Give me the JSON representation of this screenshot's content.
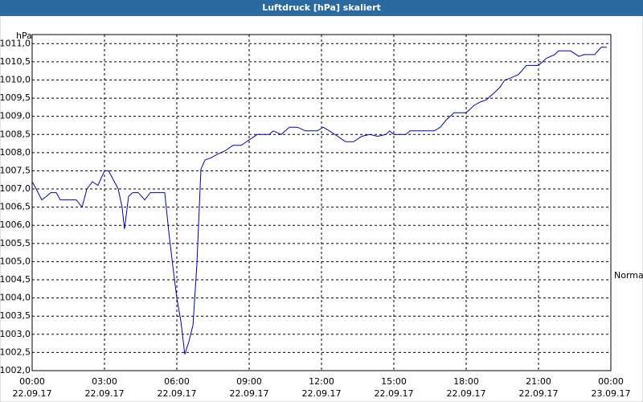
{
  "chart_data": {
    "type": "line",
    "title": "Luftdruck [hPa] skaliert",
    "y_label": "hPa",
    "annotations": [
      "Normal"
    ],
    "grid": true,
    "color": "#0000c0",
    "xlim": [
      0,
      24
    ],
    "ylim": [
      1002,
      1011.25
    ],
    "xticks": [
      {
        "value": 0,
        "label": [
          "00:00",
          "22.09.17"
        ]
      },
      {
        "value": 3,
        "label": [
          "03:00",
          "22.09.17"
        ]
      },
      {
        "value": 6,
        "label": [
          "06:00",
          "22.09.17"
        ]
      },
      {
        "value": 9,
        "label": [
          "09:00",
          "22.09.17"
        ]
      },
      {
        "value": 12,
        "label": [
          "12:00",
          "22.09.17"
        ]
      },
      {
        "value": 15,
        "label": [
          "15:00",
          "22.09.17"
        ]
      },
      {
        "value": 18,
        "label": [
          "18:00",
          "22.09.17"
        ]
      },
      {
        "value": 21,
        "label": [
          "21:00",
          "22.09.17"
        ]
      },
      {
        "value": 24,
        "label": [
          "00:00",
          "23.09.17"
        ]
      }
    ],
    "yticks": [
      {
        "value": 1002,
        "label": "1002,0"
      },
      {
        "value": 1002.5,
        "label": "1002,5"
      },
      {
        "value": 1003,
        "label": "1003,0"
      },
      {
        "value": 1003.5,
        "label": "1003,5"
      },
      {
        "value": 1004,
        "label": "1004,0"
      },
      {
        "value": 1004.5,
        "label": "1004,5"
      },
      {
        "value": 1005,
        "label": "1005,0"
      },
      {
        "value": 1005.5,
        "label": "1005,5"
      },
      {
        "value": 1006,
        "label": "1006,0"
      },
      {
        "value": 1006.5,
        "label": "1006,5"
      },
      {
        "value": 1007,
        "label": "1007,0"
      },
      {
        "value": 1007.5,
        "label": "1007,5"
      },
      {
        "value": 1008,
        "label": "1008,0"
      },
      {
        "value": 1008.5,
        "label": "1008,5"
      },
      {
        "value": 1009,
        "label": "1009,0"
      },
      {
        "value": 1009.5,
        "label": "1009,5"
      },
      {
        "value": 1010,
        "label": "1010,0"
      },
      {
        "value": 1010.5,
        "label": "1010,5"
      },
      {
        "value": 1011,
        "label": "1011,0"
      }
    ],
    "x": [
      0,
      0.17,
      0.4,
      0.6,
      0.77,
      1.0,
      1.17,
      1.67,
      1.83,
      2.07,
      2.27,
      2.5,
      2.73,
      3.0,
      3.17,
      3.33,
      3.57,
      3.73,
      3.83,
      4.0,
      4.17,
      4.4,
      4.67,
      4.9,
      5.17,
      5.5,
      5.67,
      5.83,
      6.0,
      6.17,
      6.33,
      6.5,
      6.67,
      6.83,
      7.0,
      7.17,
      7.4,
      7.67,
      8.0,
      8.33,
      8.67,
      9.0,
      9.33,
      9.83,
      10.0,
      10.33,
      10.67,
      11.0,
      11.33,
      11.83,
      12.07,
      12.33,
      12.67,
      13.0,
      13.33,
      13.67,
      14.0,
      14.33,
      14.67,
      14.83,
      15.0,
      15.5,
      15.67,
      16.67,
      16.93,
      17.17,
      17.5,
      18.0,
      18.33,
      18.6,
      18.83,
      19.17,
      19.4,
      19.6,
      19.83,
      20.17,
      20.5,
      21.0,
      21.33,
      21.67,
      21.83,
      22.33,
      22.67,
      22.9,
      23.33,
      23.6,
      23.83
    ],
    "values": [
      1007.2,
      1007.0,
      1006.7,
      1006.8,
      1006.9,
      1006.9,
      1006.7,
      1006.7,
      1006.7,
      1006.5,
      1007.0,
      1007.2,
      1007.1,
      1007.5,
      1007.5,
      1007.3,
      1007.0,
      1006.5,
      1005.9,
      1006.8,
      1006.9,
      1006.9,
      1006.7,
      1006.9,
      1006.9,
      1006.9,
      1005.8,
      1004.9,
      1004.0,
      1003.35,
      1002.45,
      1002.8,
      1003.25,
      1004.9,
      1007.55,
      1007.8,
      1007.85,
      1007.95,
      1008.05,
      1008.2,
      1008.2,
      1008.35,
      1008.5,
      1008.5,
      1008.6,
      1008.5,
      1008.7,
      1008.7,
      1008.6,
      1008.6,
      1008.7,
      1008.6,
      1008.45,
      1008.3,
      1008.3,
      1008.45,
      1008.5,
      1008.45,
      1008.5,
      1008.6,
      1008.5,
      1008.5,
      1008.6,
      1008.6,
      1008.7,
      1008.9,
      1009.1,
      1009.1,
      1009.3,
      1009.4,
      1009.45,
      1009.65,
      1009.8,
      1010.0,
      1010.05,
      1010.15,
      1010.4,
      1010.4,
      1010.6,
      1010.7,
      1010.8,
      1010.8,
      1010.65,
      1010.7,
      1010.7,
      1010.9,
      1010.9
    ]
  }
}
